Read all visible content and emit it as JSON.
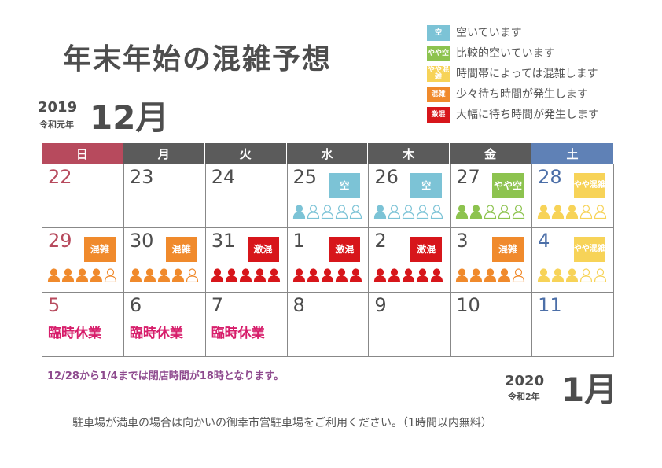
{
  "title": "年末年始の混雑予想",
  "december": {
    "year": "2019",
    "era": "令和元年",
    "month": "12月"
  },
  "january": {
    "year": "2020",
    "era": "令和2年",
    "month": "1月"
  },
  "legend": [
    {
      "badge": "空",
      "text": "空いています",
      "color": "#7cc3d6"
    },
    {
      "badge": "やや空",
      "text": "比較的空いています",
      "color": "#8dc34f"
    },
    {
      "badge": "やや混雑",
      "text": "時間帯によっては混雑します",
      "color": "#f7d358"
    },
    {
      "badge": "混雑",
      "text": "少々待ち時間が発生します",
      "color": "#f08a2c"
    },
    {
      "badge": "激混",
      "text": "大幅に待ち時間が発生します",
      "color": "#d7161b"
    }
  ],
  "weekdays": [
    {
      "label": "日",
      "color": "#b74a5d"
    },
    {
      "label": "月",
      "color": "#5b5b5b"
    },
    {
      "label": "火",
      "color": "#5b5b5b"
    },
    {
      "label": "水",
      "color": "#5b5b5b"
    },
    {
      "label": "木",
      "color": "#5b5b5b"
    },
    {
      "label": "金",
      "color": "#5b5b5b"
    },
    {
      "label": "土",
      "color": "#5f81b6"
    }
  ],
  "levels": {
    "空": {
      "color": "#7cc3d6",
      "filled": 1
    },
    "やや空": {
      "color": "#8dc34f",
      "filled": 2
    },
    "やや混雑": {
      "color": "#f7d358",
      "filled": 3
    },
    "混雑": {
      "color": "#f08a2c",
      "filled": 4
    },
    "激混": {
      "color": "#d7161b",
      "filled": 5
    }
  },
  "weeks": [
    [
      {
        "day": "22"
      },
      {
        "day": "23"
      },
      {
        "day": "24"
      },
      {
        "day": "25",
        "level": "空"
      },
      {
        "day": "26",
        "level": "空"
      },
      {
        "day": "27",
        "level": "やや空"
      },
      {
        "day": "28",
        "level": "やや混雑"
      }
    ],
    [
      {
        "day": "29",
        "level": "混雑"
      },
      {
        "day": "30",
        "level": "混雑"
      },
      {
        "day": "31",
        "level": "激混"
      },
      {
        "day": "1",
        "level": "激混"
      },
      {
        "day": "2",
        "level": "激混"
      },
      {
        "day": "3",
        "level": "混雑"
      },
      {
        "day": "4",
        "level": "やや混雑"
      }
    ],
    [
      {
        "day": "5",
        "closed": "臨時休業"
      },
      {
        "day": "6",
        "closed": "臨時休業"
      },
      {
        "day": "7",
        "closed": "臨時休業"
      },
      {
        "day": "8"
      },
      {
        "day": "9"
      },
      {
        "day": "10"
      },
      {
        "day": "11"
      }
    ]
  ],
  "note": "12/28から1/4までは閉店時間が18時となります。",
  "footer": "駐車場が満車の場合は向かいの御幸市営駐車場をご利用ください。（1時間以内無料）"
}
